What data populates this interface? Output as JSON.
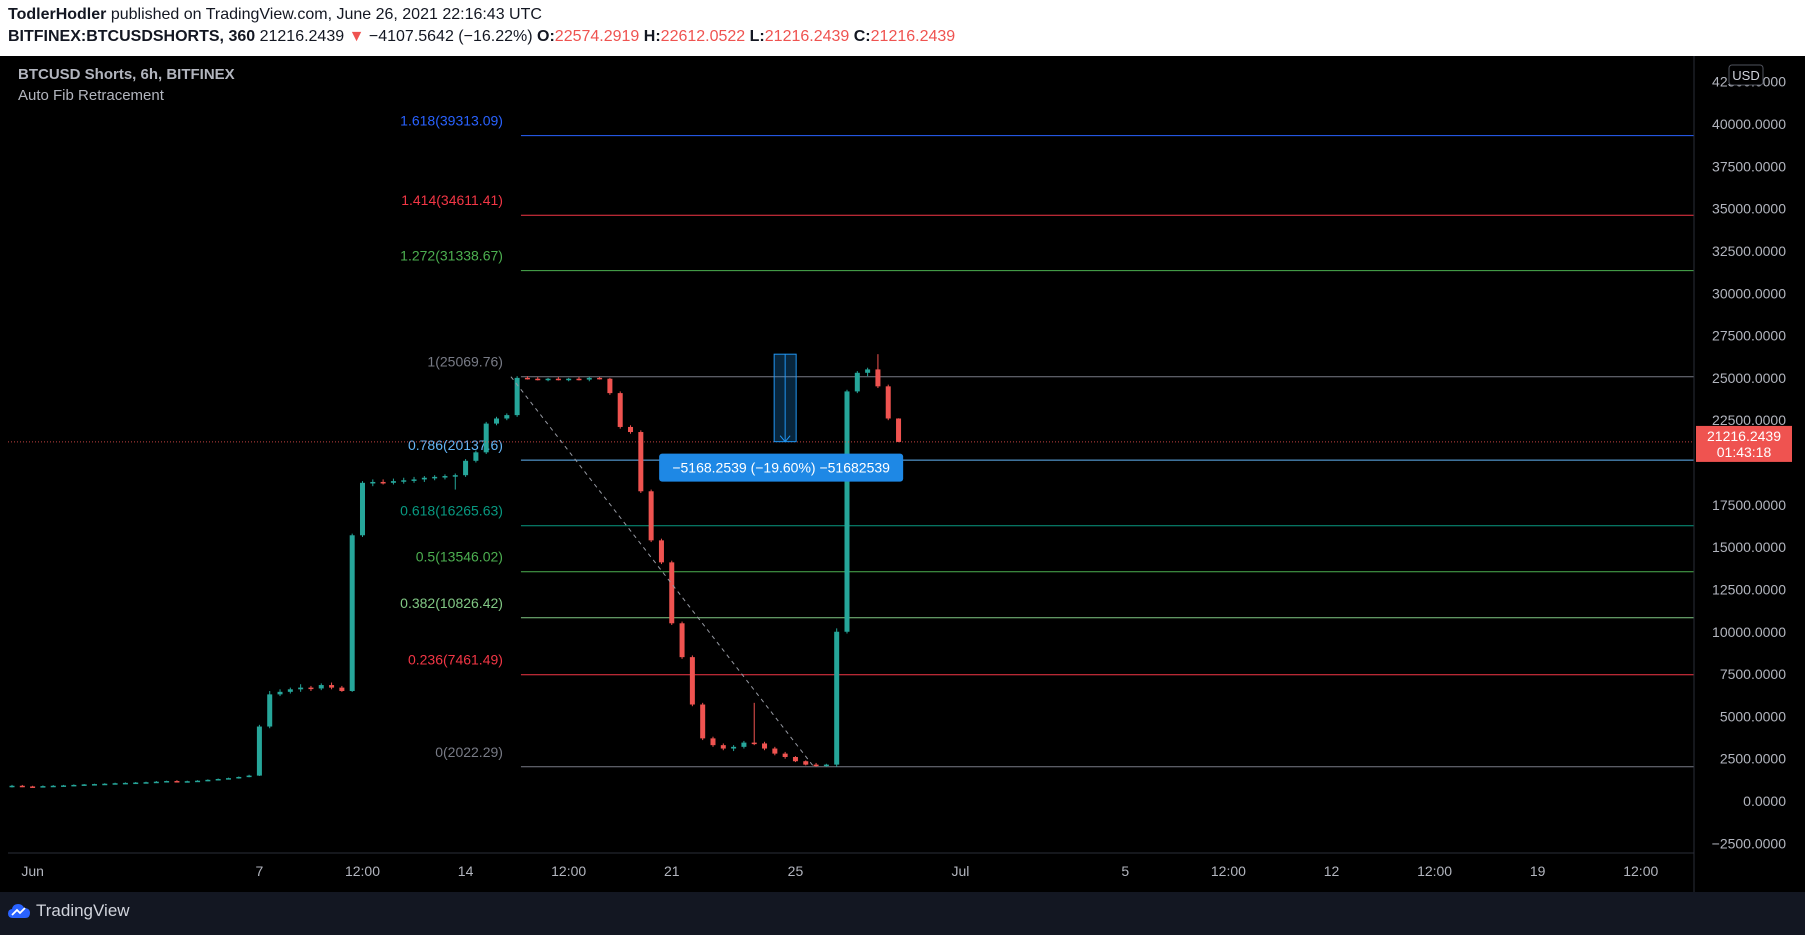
{
  "header": {
    "publisher": "TodlerHodler",
    "published_text": "published on TradingView.com, June 26, 2021 22:16:43 UTC",
    "symbol": "BITFINEX:BTCUSDSHORTS, 360",
    "last": "21216.2439",
    "change": "−4107.5642 (−16.22%)",
    "o_label": "O:",
    "o": "22574.2919",
    "h_label": "H:",
    "h": "22612.0522",
    "l_label": "L:",
    "l": "21216.2439",
    "c_label": "C:",
    "c": "21216.2439"
  },
  "legend": {
    "title": "BTCUSD Shorts, 6h, BITFINEX",
    "indicator": "Auto Fib Retracement"
  },
  "footer": {
    "brand": "TradingView"
  },
  "colors": {
    "up": "#26a69a",
    "down": "#ef5350",
    "bg": "#000000",
    "axis_text": "#b2b5be"
  },
  "chart_data": {
    "type": "candlestick",
    "y_axis": {
      "currency_label": "USD",
      "ticks": [
        "42500.0000",
        "40000.0000",
        "37500.0000",
        "35000.0000",
        "32500.0000",
        "30000.0000",
        "27500.0000",
        "25000.0000",
        "22500.0000",
        "17500.0000",
        "15000.0000",
        "12500.0000",
        "10000.0000",
        "7500.0000",
        "5000.0000",
        "2500.0000",
        "0.0000",
        "−2500.0000"
      ],
      "tick_values": [
        42500,
        40000,
        37500,
        35000,
        32500,
        30000,
        27500,
        25000,
        22500,
        17500,
        15000,
        12500,
        10000,
        7500,
        5000,
        2500,
        0,
        -2500
      ],
      "ylim": [
        -2500,
        42500
      ]
    },
    "x_axis": {
      "ticks": [
        {
          "label": "Jun",
          "t": 0.5
        },
        {
          "label": "7",
          "t": 6
        },
        {
          "label": "12:00",
          "t": 8.5
        },
        {
          "label": "14",
          "t": 11
        },
        {
          "label": "12:00",
          "t": 13.5
        },
        {
          "label": "21",
          "t": 16
        },
        {
          "label": "25",
          "t": 19
        },
        {
          "label": "Jul",
          "t": 23
        },
        {
          "label": "5",
          "t": 27
        },
        {
          "label": "12:00",
          "t": 29.5
        },
        {
          "label": "12",
          "t": 32
        },
        {
          "label": "12:00",
          "t": 34.5
        },
        {
          "label": "19",
          "t": 37
        },
        {
          "label": "12:00",
          "t": 39.5
        }
      ],
      "t_range": [
        0,
        40.5
      ],
      "t_unit": "days since first candle, Jun 1 2021"
    },
    "price_marker": {
      "value": 21216.2439,
      "label": "21216.2439",
      "countdown": "01:43:18"
    },
    "fib_levels": [
      {
        "label": "1.618(39313.09)",
        "value": 39313.09,
        "color": "#2962ff"
      },
      {
        "label": "1.414(34611.41)",
        "value": 34611.41,
        "color": "#f23645"
      },
      {
        "label": "1.272(31338.67)",
        "value": 31338.67,
        "color": "#4caf50"
      },
      {
        "label": "1(25069.76)",
        "value": 25069.76,
        "color": "#787b86"
      },
      {
        "label": "0.786(20137.6)",
        "value": 20137.6,
        "color": "#64b5f6"
      },
      {
        "label": "0.618(16265.63)",
        "value": 16265.63,
        "color": "#089981"
      },
      {
        "label": "0.5(13546.02)",
        "value": 13546.02,
        "color": "#4caf50"
      },
      {
        "label": "0.382(10826.42)",
        "value": 10826.42,
        "color": "#81c784"
      },
      {
        "label": "0.236(7461.49)",
        "value": 7461.49,
        "color": "#f23645"
      },
      {
        "label": "0(2022.29)",
        "value": 2022.29,
        "color": "#787b86"
      }
    ],
    "fib_start_t": 12.1,
    "fib_trend": {
      "t1": 12.1,
      "v1": 25069.76,
      "t2": 19.25,
      "v2": 2022.29
    },
    "measure": {
      "t": 18.75,
      "from": 26400,
      "to": 21230,
      "label": "−5168.2539 (−19.60%) −51682539"
    },
    "candles": [
      {
        "t": 0.0,
        "o": 850,
        "h": 950,
        "l": 800,
        "c": 900
      },
      {
        "t": 0.25,
        "o": 900,
        "h": 950,
        "l": 820,
        "c": 860
      },
      {
        "t": 0.5,
        "o": 860,
        "h": 900,
        "l": 800,
        "c": 850
      },
      {
        "t": 0.75,
        "o": 850,
        "h": 920,
        "l": 820,
        "c": 880
      },
      {
        "t": 1.0,
        "o": 880,
        "h": 940,
        "l": 840,
        "c": 900
      },
      {
        "t": 1.25,
        "o": 900,
        "h": 950,
        "l": 860,
        "c": 920
      },
      {
        "t": 1.5,
        "o": 920,
        "h": 980,
        "l": 880,
        "c": 950
      },
      {
        "t": 1.75,
        "o": 950,
        "h": 1000,
        "l": 900,
        "c": 980
      },
      {
        "t": 2.0,
        "o": 980,
        "h": 1020,
        "l": 940,
        "c": 1000
      },
      {
        "t": 2.25,
        "o": 1000,
        "h": 1050,
        "l": 960,
        "c": 1020
      },
      {
        "t": 2.5,
        "o": 1020,
        "h": 1080,
        "l": 990,
        "c": 1050
      },
      {
        "t": 2.75,
        "o": 1050,
        "h": 1100,
        "l": 1010,
        "c": 1070
      },
      {
        "t": 3.0,
        "o": 1070,
        "h": 1120,
        "l": 1030,
        "c": 1090
      },
      {
        "t": 3.25,
        "o": 1090,
        "h": 1140,
        "l": 1050,
        "c": 1110
      },
      {
        "t": 3.5,
        "o": 1110,
        "h": 1180,
        "l": 1070,
        "c": 1140
      },
      {
        "t": 3.75,
        "o": 1140,
        "h": 1200,
        "l": 1100,
        "c": 1180
      },
      {
        "t": 4.0,
        "o": 1180,
        "h": 1230,
        "l": 1130,
        "c": 1150
      },
      {
        "t": 4.25,
        "o": 1150,
        "h": 1200,
        "l": 1110,
        "c": 1170
      },
      {
        "t": 4.5,
        "o": 1170,
        "h": 1230,
        "l": 1140,
        "c": 1200
      },
      {
        "t": 4.75,
        "o": 1200,
        "h": 1280,
        "l": 1170,
        "c": 1250
      },
      {
        "t": 5.0,
        "o": 1250,
        "h": 1330,
        "l": 1220,
        "c": 1300
      },
      {
        "t": 5.25,
        "o": 1300,
        "h": 1380,
        "l": 1270,
        "c": 1350
      },
      {
        "t": 5.5,
        "o": 1350,
        "h": 1450,
        "l": 1320,
        "c": 1420
      },
      {
        "t": 5.75,
        "o": 1420,
        "h": 1550,
        "l": 1400,
        "c": 1500
      },
      {
        "t": 6.0,
        "o": 1500,
        "h": 4500,
        "l": 1480,
        "c": 4400
      },
      {
        "t": 6.25,
        "o": 4400,
        "h": 6500,
        "l": 4300,
        "c": 6300
      },
      {
        "t": 6.5,
        "o": 6300,
        "h": 6600,
        "l": 6200,
        "c": 6450
      },
      {
        "t": 6.75,
        "o": 6450,
        "h": 6700,
        "l": 6350,
        "c": 6600
      },
      {
        "t": 7.0,
        "o": 6600,
        "h": 6900,
        "l": 6450,
        "c": 6700
      },
      {
        "t": 7.25,
        "o": 6700,
        "h": 6800,
        "l": 6500,
        "c": 6650
      },
      {
        "t": 7.5,
        "o": 6650,
        "h": 6950,
        "l": 6550,
        "c": 6850
      },
      {
        "t": 7.75,
        "o": 6850,
        "h": 7000,
        "l": 6600,
        "c": 6700
      },
      {
        "t": 8.0,
        "o": 6700,
        "h": 6800,
        "l": 6450,
        "c": 6500
      },
      {
        "t": 8.25,
        "o": 6500,
        "h": 15800,
        "l": 6450,
        "c": 15700
      },
      {
        "t": 8.5,
        "o": 15700,
        "h": 18900,
        "l": 15600,
        "c": 18800
      },
      {
        "t": 8.75,
        "o": 18800,
        "h": 19000,
        "l": 18600,
        "c": 18850
      },
      {
        "t": 9.0,
        "o": 18850,
        "h": 19000,
        "l": 18700,
        "c": 18800
      },
      {
        "t": 9.25,
        "o": 18800,
        "h": 19050,
        "l": 18700,
        "c": 18900
      },
      {
        "t": 9.5,
        "o": 18900,
        "h": 19100,
        "l": 18750,
        "c": 18950
      },
      {
        "t": 9.75,
        "o": 18950,
        "h": 19150,
        "l": 18800,
        "c": 19000
      },
      {
        "t": 10.0,
        "o": 19000,
        "h": 19200,
        "l": 18850,
        "c": 19100
      },
      {
        "t": 10.25,
        "o": 19100,
        "h": 19250,
        "l": 18950,
        "c": 19150
      },
      {
        "t": 10.5,
        "o": 19150,
        "h": 19300,
        "l": 19000,
        "c": 19200
      },
      {
        "t": 10.75,
        "o": 19200,
        "h": 19350,
        "l": 18400,
        "c": 19250
      },
      {
        "t": 11.0,
        "o": 19250,
        "h": 20200,
        "l": 19150,
        "c": 20100
      },
      {
        "t": 11.25,
        "o": 20100,
        "h": 20700,
        "l": 20000,
        "c": 20600
      },
      {
        "t": 11.5,
        "o": 20600,
        "h": 22400,
        "l": 20500,
        "c": 22300
      },
      {
        "t": 11.75,
        "o": 22300,
        "h": 22700,
        "l": 22200,
        "c": 22600
      },
      {
        "t": 12.0,
        "o": 22600,
        "h": 22900,
        "l": 22500,
        "c": 22800
      },
      {
        "t": 12.25,
        "o": 22800,
        "h": 25100,
        "l": 22700,
        "c": 25000
      },
      {
        "t": 12.5,
        "o": 25000,
        "h": 25100,
        "l": 24900,
        "c": 24950
      },
      {
        "t": 12.75,
        "o": 24950,
        "h": 25050,
        "l": 24850,
        "c": 24900
      },
      {
        "t": 13.0,
        "o": 24900,
        "h": 25000,
        "l": 24800,
        "c": 24950
      },
      {
        "t": 13.25,
        "o": 24950,
        "h": 25050,
        "l": 24850,
        "c": 24900
      },
      {
        "t": 13.5,
        "o": 24900,
        "h": 25000,
        "l": 24800,
        "c": 24950
      },
      {
        "t": 13.75,
        "o": 24950,
        "h": 25050,
        "l": 24850,
        "c": 24900
      },
      {
        "t": 14.0,
        "o": 24900,
        "h": 25070,
        "l": 24800,
        "c": 25000
      },
      {
        "t": 14.25,
        "o": 25000,
        "h": 25050,
        "l": 24900,
        "c": 24950
      },
      {
        "t": 14.5,
        "o": 24950,
        "h": 25000,
        "l": 24000,
        "c": 24100
      },
      {
        "t": 14.75,
        "o": 24100,
        "h": 24200,
        "l": 22000,
        "c": 22100
      },
      {
        "t": 15.0,
        "o": 22100,
        "h": 22200,
        "l": 21700,
        "c": 21800
      },
      {
        "t": 15.25,
        "o": 21800,
        "h": 21900,
        "l": 18200,
        "c": 18300
      },
      {
        "t": 15.5,
        "o": 18300,
        "h": 18400,
        "l": 15300,
        "c": 15400
      },
      {
        "t": 15.75,
        "o": 15400,
        "h": 15500,
        "l": 14000,
        "c": 14100
      },
      {
        "t": 16.0,
        "o": 14100,
        "h": 14200,
        "l": 10400,
        "c": 10500
      },
      {
        "t": 16.25,
        "o": 10500,
        "h": 10600,
        "l": 8400,
        "c": 8500
      },
      {
        "t": 16.5,
        "o": 8500,
        "h": 8600,
        "l": 5600,
        "c": 5700
      },
      {
        "t": 16.75,
        "o": 5700,
        "h": 5800,
        "l": 3600,
        "c": 3700
      },
      {
        "t": 17.0,
        "o": 3700,
        "h": 3800,
        "l": 3200,
        "c": 3300
      },
      {
        "t": 17.25,
        "o": 3300,
        "h": 3400,
        "l": 3000,
        "c": 3100
      },
      {
        "t": 17.5,
        "o": 3100,
        "h": 3300,
        "l": 2950,
        "c": 3200
      },
      {
        "t": 17.75,
        "o": 3200,
        "h": 3550,
        "l": 3100,
        "c": 3450
      },
      {
        "t": 18.0,
        "o": 3450,
        "h": 5800,
        "l": 3300,
        "c": 3400
      },
      {
        "t": 18.25,
        "o": 3400,
        "h": 3500,
        "l": 3000,
        "c": 3100
      },
      {
        "t": 18.5,
        "o": 3100,
        "h": 3200,
        "l": 2700,
        "c": 2800
      },
      {
        "t": 18.75,
        "o": 2800,
        "h": 2900,
        "l": 2500,
        "c": 2600
      },
      {
        "t": 19.0,
        "o": 2600,
        "h": 2650,
        "l": 2300,
        "c": 2350
      },
      {
        "t": 19.25,
        "o": 2350,
        "h": 2400,
        "l": 2100,
        "c": 2150
      },
      {
        "t": 19.5,
        "o": 2150,
        "h": 2250,
        "l": 2022,
        "c": 2100
      },
      {
        "t": 19.75,
        "o": 2100,
        "h": 2200,
        "l": 2022,
        "c": 2150
      },
      {
        "t": 20.0,
        "o": 2150,
        "h": 10200,
        "l": 2022,
        "c": 10000
      },
      {
        "t": 20.25,
        "o": 10000,
        "h": 24300,
        "l": 9900,
        "c": 24200
      },
      {
        "t": 20.5,
        "o": 24200,
        "h": 25400,
        "l": 24100,
        "c": 25300
      },
      {
        "t": 20.75,
        "o": 25300,
        "h": 25600,
        "l": 25100,
        "c": 25500
      },
      {
        "t": 21.0,
        "o": 25500,
        "h": 26400,
        "l": 24400,
        "c": 24500
      },
      {
        "t": 21.25,
        "o": 24500,
        "h": 24600,
        "l": 22500,
        "c": 22600
      },
      {
        "t": 21.5,
        "o": 22600,
        "h": 22612,
        "l": 21200,
        "c": 21216
      }
    ]
  }
}
